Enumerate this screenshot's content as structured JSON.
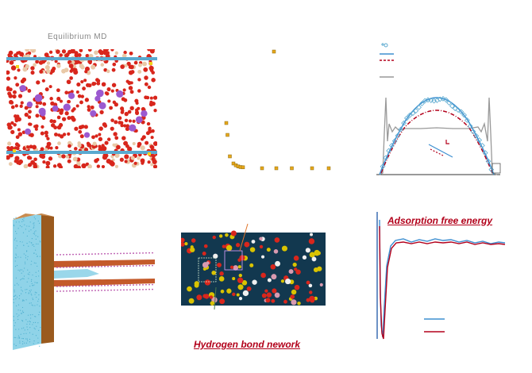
{
  "panels": {
    "equilibrium": {
      "title": "Equilibrium MD"
    },
    "hbond": {
      "caption": "Hydrogen bond nework"
    },
    "adsorption": {
      "caption": "Adsorption free energy"
    }
  },
  "colors": {
    "oxygen_red": "#d8261c",
    "ion_purple": "#9b59d0",
    "silica_blue": "#5aa9cf",
    "point_gold": "#e8a81a",
    "caption_red": "#b2001a",
    "profile_blue": "#3d8fd1",
    "profile_darkred": "#b3001b",
    "profile_gray": "#999999",
    "water_cyan": "#8fd3e8",
    "wall_brown": "#9a5a1e"
  },
  "decay_points": [
    {
      "t": 0.4,
      "v": 1.0
    },
    {
      "t": 0.0,
      "v": 0.4
    },
    {
      "t": 0.01,
      "v": 0.3
    },
    {
      "t": 0.03,
      "v": 0.12
    },
    {
      "t": 0.06,
      "v": 0.06
    },
    {
      "t": 0.08,
      "v": 0.045
    },
    {
      "t": 0.1,
      "v": 0.035
    },
    {
      "t": 0.12,
      "v": 0.03
    },
    {
      "t": 0.14,
      "v": 0.028
    },
    {
      "t": 0.3,
      "v": 0.02
    },
    {
      "t": 0.42,
      "v": 0.02
    },
    {
      "t": 0.55,
      "v": 0.02
    },
    {
      "t": 0.72,
      "v": 0.02
    },
    {
      "t": 0.86,
      "v": 0.02
    }
  ]
}
